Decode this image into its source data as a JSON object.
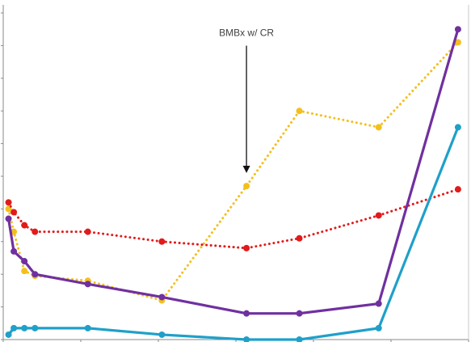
{
  "chart_data": {
    "type": "line",
    "title": "",
    "xlabel": "",
    "ylabel": "",
    "x": [
      0,
      2,
      6,
      10,
      30,
      58,
      90,
      110,
      140,
      170
    ],
    "xlim": [
      -2,
      174
    ],
    "ylim": [
      0,
      100
    ],
    "annotations": [
      {
        "text": "BMBx w/ CR",
        "x": 90,
        "arrow_from_y": 88,
        "arrow_to_y": 51
      }
    ],
    "series": [
      {
        "color": "#f2c01e",
        "style": "dotted",
        "values": [
          40,
          33,
          21,
          19.5,
          18,
          12,
          47,
          70,
          65,
          91
        ]
      },
      {
        "color": "#e11b1b",
        "style": "dotted",
        "values": [
          42,
          39,
          35,
          33,
          33,
          30,
          28,
          31,
          38,
          46
        ]
      },
      {
        "color": "#7030a0",
        "style": "solid",
        "values": [
          37,
          27,
          24,
          20,
          17,
          13,
          8,
          8,
          11,
          95
        ]
      },
      {
        "color": "#1fa0c9",
        "style": "solid",
        "values": [
          1.5,
          3.5,
          3.5,
          3.5,
          3.5,
          1.5,
          0,
          0,
          3.5,
          65
        ]
      }
    ]
  }
}
